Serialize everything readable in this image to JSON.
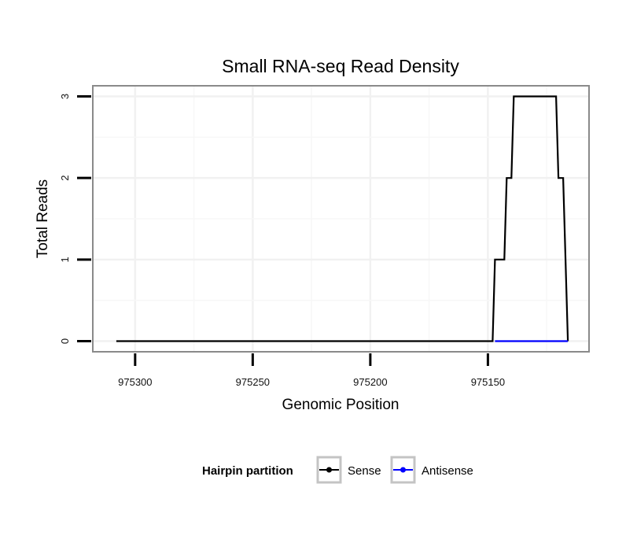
{
  "chart_data": {
    "type": "line",
    "title": "Small RNA-seq Read Density",
    "xlabel": "Genomic Position",
    "ylabel": "Total Reads",
    "x_reversed": true,
    "xlim": [
      975318,
      975107
    ],
    "ylim": [
      -0.13,
      3.13
    ],
    "xticks": [
      975300,
      975250,
      975200,
      975150
    ],
    "xtick_labels": [
      "975300",
      "975250",
      "975200",
      "975150"
    ],
    "yticks": [
      0,
      1,
      2,
      3
    ],
    "ytick_labels": [
      "0",
      "1",
      "2",
      "3"
    ],
    "grid": true,
    "legend": {
      "title": "Hairpin partition",
      "position": "bottom",
      "entries": [
        {
          "name": "Sense",
          "color": "#000000"
        },
        {
          "name": "Antisense",
          "color": "#0000ff"
        }
      ]
    },
    "series": [
      {
        "name": "Sense",
        "color": "#000000",
        "x": [
          975308,
          975148,
          975147,
          975143,
          975142,
          975140,
          975139,
          975121,
          975120,
          975118,
          975117,
          975116
        ],
        "y": [
          0,
          0,
          1,
          1,
          2,
          2,
          3,
          3,
          2,
          2,
          1,
          0
        ]
      },
      {
        "name": "Antisense",
        "color": "#0000ff",
        "x": [
          975147,
          975116
        ],
        "y": [
          0,
          0
        ]
      }
    ]
  }
}
